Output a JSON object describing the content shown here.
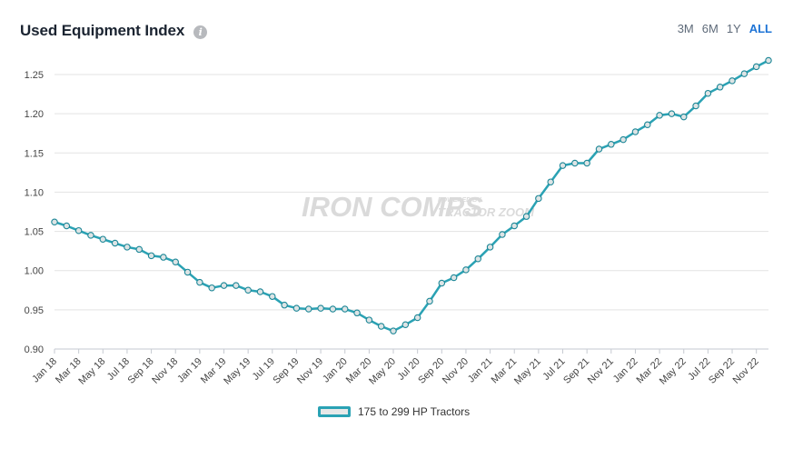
{
  "header": {
    "title": "Used Equipment Index",
    "info_icon": "info-icon",
    "ranges": [
      "3M",
      "6M",
      "1Y",
      "ALL"
    ],
    "active_range": "ALL"
  },
  "watermark": {
    "brand": "IRON COMPS",
    "tagline_top": "POWERED BY",
    "tagline_bottom": "TRACTOR ZOOM"
  },
  "chart_data": {
    "type": "line",
    "title": "Used Equipment Index",
    "xlabel": "",
    "ylabel": "",
    "ylim": [
      0.9,
      1.27
    ],
    "y_ticks": [
      "0.90",
      "0.95",
      "1.00",
      "1.05",
      "1.10",
      "1.15",
      "1.20",
      "1.25"
    ],
    "x_tick_labels": [
      "Jan 18",
      "Mar 18",
      "May 18",
      "Jul 18",
      "Sep 18",
      "Nov 18",
      "Jan 19",
      "Mar 19",
      "May 19",
      "Jul 19",
      "Sep 19",
      "Nov 19",
      "Jan 20",
      "Mar 20",
      "May 20",
      "Jul 20",
      "Sep 20",
      "Nov 20",
      "Jan 21",
      "Mar 21",
      "May 21",
      "Jul 21",
      "Sep 21",
      "Nov 21",
      "Jan 22",
      "Mar 22",
      "May 22",
      "Jul 22",
      "Sep 22",
      "Nov 22"
    ],
    "legend_position": "bottom-center",
    "series": [
      {
        "name": "175 to 299 HP Tractors",
        "color": "#2aa2b4",
        "values": [
          1.062,
          1.057,
          1.051,
          1.045,
          1.04,
          1.035,
          1.03,
          1.027,
          1.019,
          1.017,
          1.011,
          0.998,
          0.985,
          0.978,
          0.981,
          0.981,
          0.975,
          0.973,
          0.967,
          0.956,
          0.952,
          0.951,
          0.952,
          0.951,
          0.951,
          0.946,
          0.937,
          0.929,
          0.923,
          0.931,
          0.94,
          0.961,
          0.984,
          0.991,
          1.001,
          1.015,
          1.03,
          1.046,
          1.057,
          1.069,
          1.092,
          1.113,
          1.134,
          1.137,
          1.137,
          1.155,
          1.161,
          1.167,
          1.177,
          1.186,
          1.198,
          1.2,
          1.196,
          1.21,
          1.226,
          1.234,
          1.242,
          1.251,
          1.26,
          1.268
        ]
      }
    ]
  }
}
